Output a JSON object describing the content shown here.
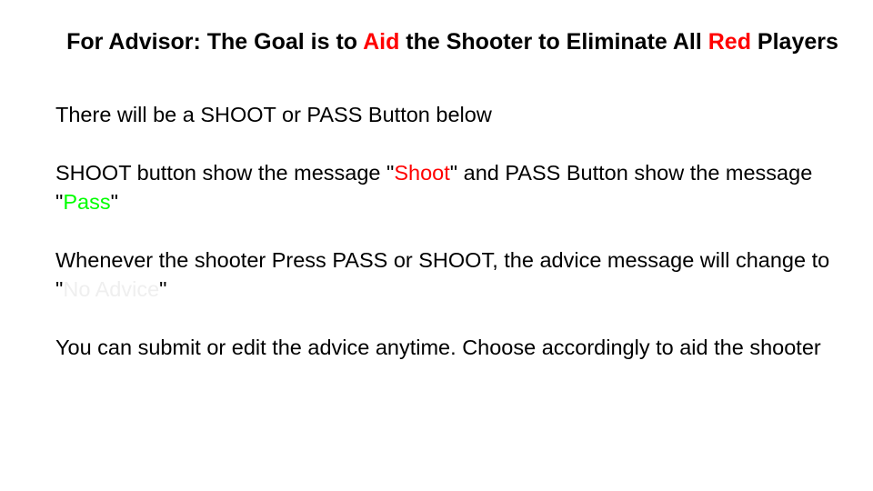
{
  "colors": {
    "red": "#ff0000",
    "green": "#00ff00",
    "faint": "#efefef"
  },
  "title": {
    "part1": "For Advisor: The Goal is to ",
    "aid": "Aid",
    "part2": " the Shooter to Eliminate All ",
    "red": "Red",
    "part3": " Players"
  },
  "paragraphs": {
    "p1": {
      "text": "There will be a SHOOT or PASS Button below"
    },
    "p2": {
      "t1": "SHOOT button show the message \"",
      "shoot": "Shoot",
      "t2": "\" and PASS Button show the message \"",
      "pass": "Pass",
      "t3": "\""
    },
    "p3": {
      "t1": "Whenever the shooter Press PASS or SHOOT, the advice message will change to \"",
      "no_advice": "No Advice",
      "t2": "\""
    },
    "p4": {
      "text": "You can submit or edit the advice anytime. Choose accordingly to aid the shooter"
    }
  }
}
